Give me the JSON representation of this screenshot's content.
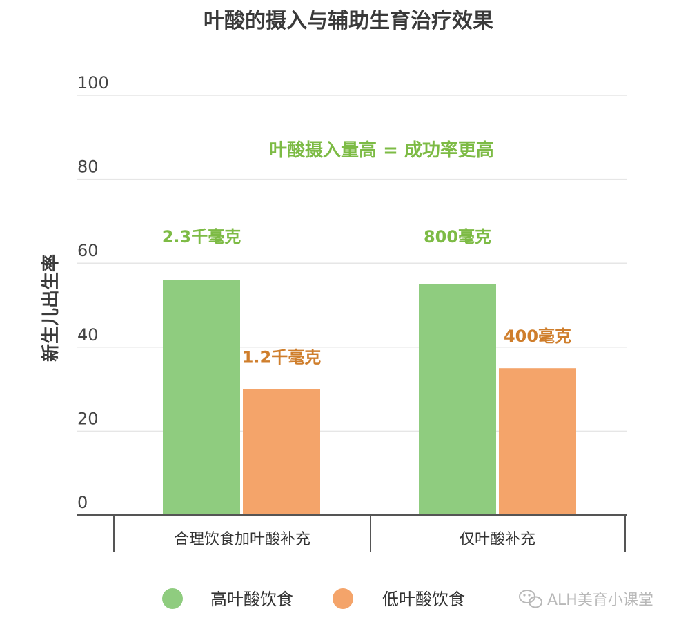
{
  "chart_data": {
    "type": "bar",
    "title": "叶酸的摄入与辅助生育治疗效果",
    "ylabel": "新生儿出生率",
    "xlabel": "",
    "ylim": [
      0,
      100
    ],
    "yticks": [
      "0",
      "20",
      "40",
      "60",
      "80",
      "100"
    ],
    "grid": true,
    "categories": [
      "合理饮食加叶酸补充",
      "仅叶酸补充"
    ],
    "series": [
      {
        "name": "高叶酸饮食",
        "color": "#8fcc7f",
        "label_color": "#7dbb45",
        "values": [
          56,
          55
        ],
        "data_labels": [
          "2.3千毫克",
          "800毫克"
        ]
      },
      {
        "name": "低叶酸饮食",
        "color": "#f4a46a",
        "label_color": "#cf7e2c",
        "values": [
          30,
          35
        ],
        "data_labels": [
          "1.2千毫克",
          "400毫克"
        ]
      }
    ],
    "annotation": {
      "text": "叶酸摄入量高 = 成功率更高",
      "color": "#7dbb45"
    },
    "legend_position": "bottom"
  },
  "watermark": "ALH美育小课堂"
}
